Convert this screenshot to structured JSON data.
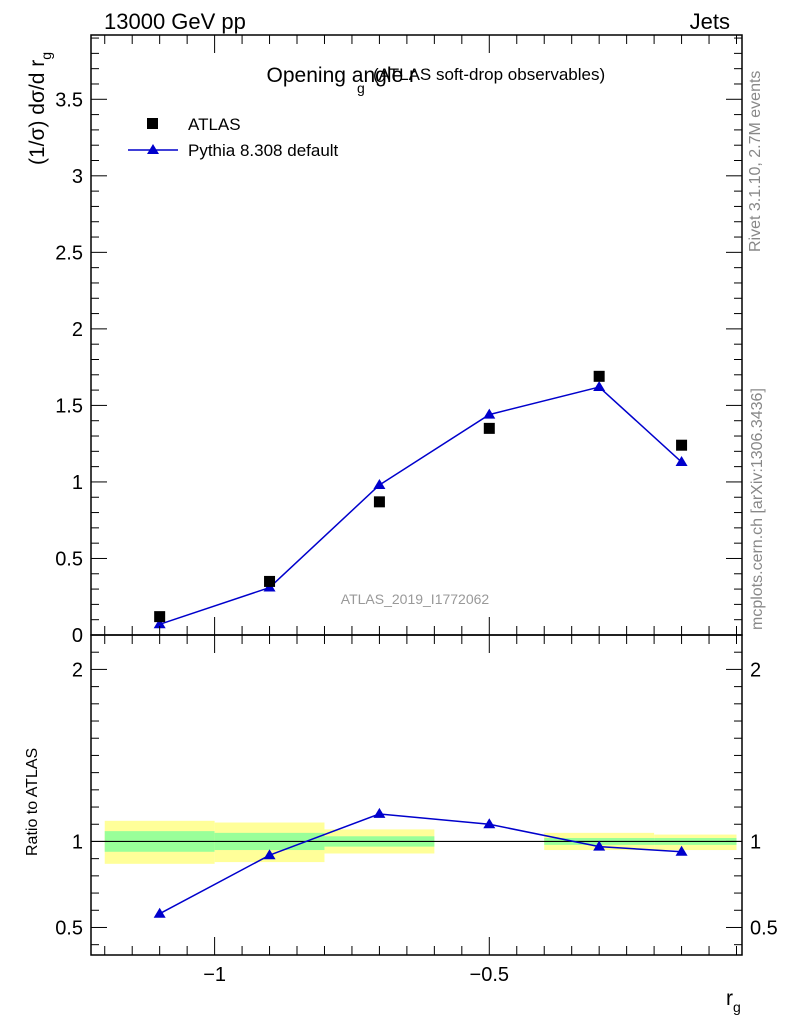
{
  "header": {
    "left": "13000 GeV pp",
    "right": "Jets"
  },
  "title": {
    "main": "Opening angle r",
    "sub": "g",
    "suffix": "(ATLAS soft-drop observables)"
  },
  "side_text": {
    "rivet": "Rivet 3.1.10,  2.7M events",
    "mcplots": "mcplots.cern.ch [arXiv:1306.3436]"
  },
  "watermark": "ATLAS_2019_I1772062",
  "ylabel_top": "(1/σ) dσ/d r",
  "ylabel_top_sub": "g",
  "ylabel_bottom": "Ratio to ATLAS",
  "xlabel": "r",
  "xlabel_sub": "g",
  "legend": {
    "data_label": "ATLAS",
    "mc_label": "Pythia 8.308 default",
    "placement": "top-left"
  },
  "colors": {
    "data": "#000000",
    "mc": "#0000cc",
    "band_inner": "#99ff99",
    "band_outer": "#ffff99"
  },
  "chart_data": [
    {
      "type": "scatter",
      "panel": "main",
      "ylim": [
        0,
        3.92
      ],
      "xlim": [
        -1.225,
        -0.04
      ],
      "x_ticks": [
        -1,
        -0.5
      ],
      "x_tick_labels": [
        "−1",
        "−0.5"
      ],
      "y_ticks": [
        0.5,
        1,
        1.5,
        2,
        2.5,
        3,
        3.5
      ],
      "y_tick_labels": [
        "0.5",
        "1",
        "1.5",
        "2",
        "2.5",
        "3",
        "3.5"
      ],
      "series": [
        {
          "name": "ATLAS",
          "x": [
            -1.1,
            -0.9,
            -0.7,
            -0.5,
            -0.3,
            -0.15
          ],
          "y": [
            0.12,
            0.35,
            0.87,
            1.35,
            1.69,
            1.24
          ]
        },
        {
          "name": "Pythia 8.308 default",
          "x": [
            -1.1,
            -0.9,
            -0.7,
            -0.5,
            -0.3,
            -0.15
          ],
          "y": [
            0.07,
            0.31,
            0.98,
            1.44,
            1.62,
            1.13
          ]
        }
      ]
    },
    {
      "type": "line",
      "panel": "ratio",
      "ylim": [
        0.34,
        2.2
      ],
      "y_ticks": [
        0.5,
        1,
        2
      ],
      "y_tick_labels": [
        "0.5",
        "1",
        "2"
      ],
      "ratio": {
        "x": [
          -1.1,
          -0.9,
          -0.7,
          -0.5,
          -0.3,
          -0.15
        ],
        "y": [
          0.58,
          0.92,
          1.16,
          1.1,
          0.97,
          0.94
        ],
        "yerr": [
          0.02,
          0.0,
          0.0,
          0.0,
          0.0,
          0.0
        ]
      },
      "bands": [
        {
          "x0": -1.2,
          "x1": -1.0,
          "inner": [
            0.94,
            1.06
          ],
          "outer": [
            0.87,
            1.12
          ]
        },
        {
          "x0": -1.0,
          "x1": -0.8,
          "inner": [
            0.95,
            1.05
          ],
          "outer": [
            0.88,
            1.11
          ]
        },
        {
          "x0": -0.8,
          "x1": -0.6,
          "inner": [
            0.97,
            1.03
          ],
          "outer": [
            0.93,
            1.07
          ]
        },
        {
          "x0": -0.4,
          "x1": -0.2,
          "inner": [
            0.98,
            1.02
          ],
          "outer": [
            0.95,
            1.05
          ]
        },
        {
          "x0": -0.2,
          "x1": -0.05,
          "inner": [
            0.98,
            1.02
          ],
          "outer": [
            0.95,
            1.04
          ]
        }
      ]
    }
  ]
}
